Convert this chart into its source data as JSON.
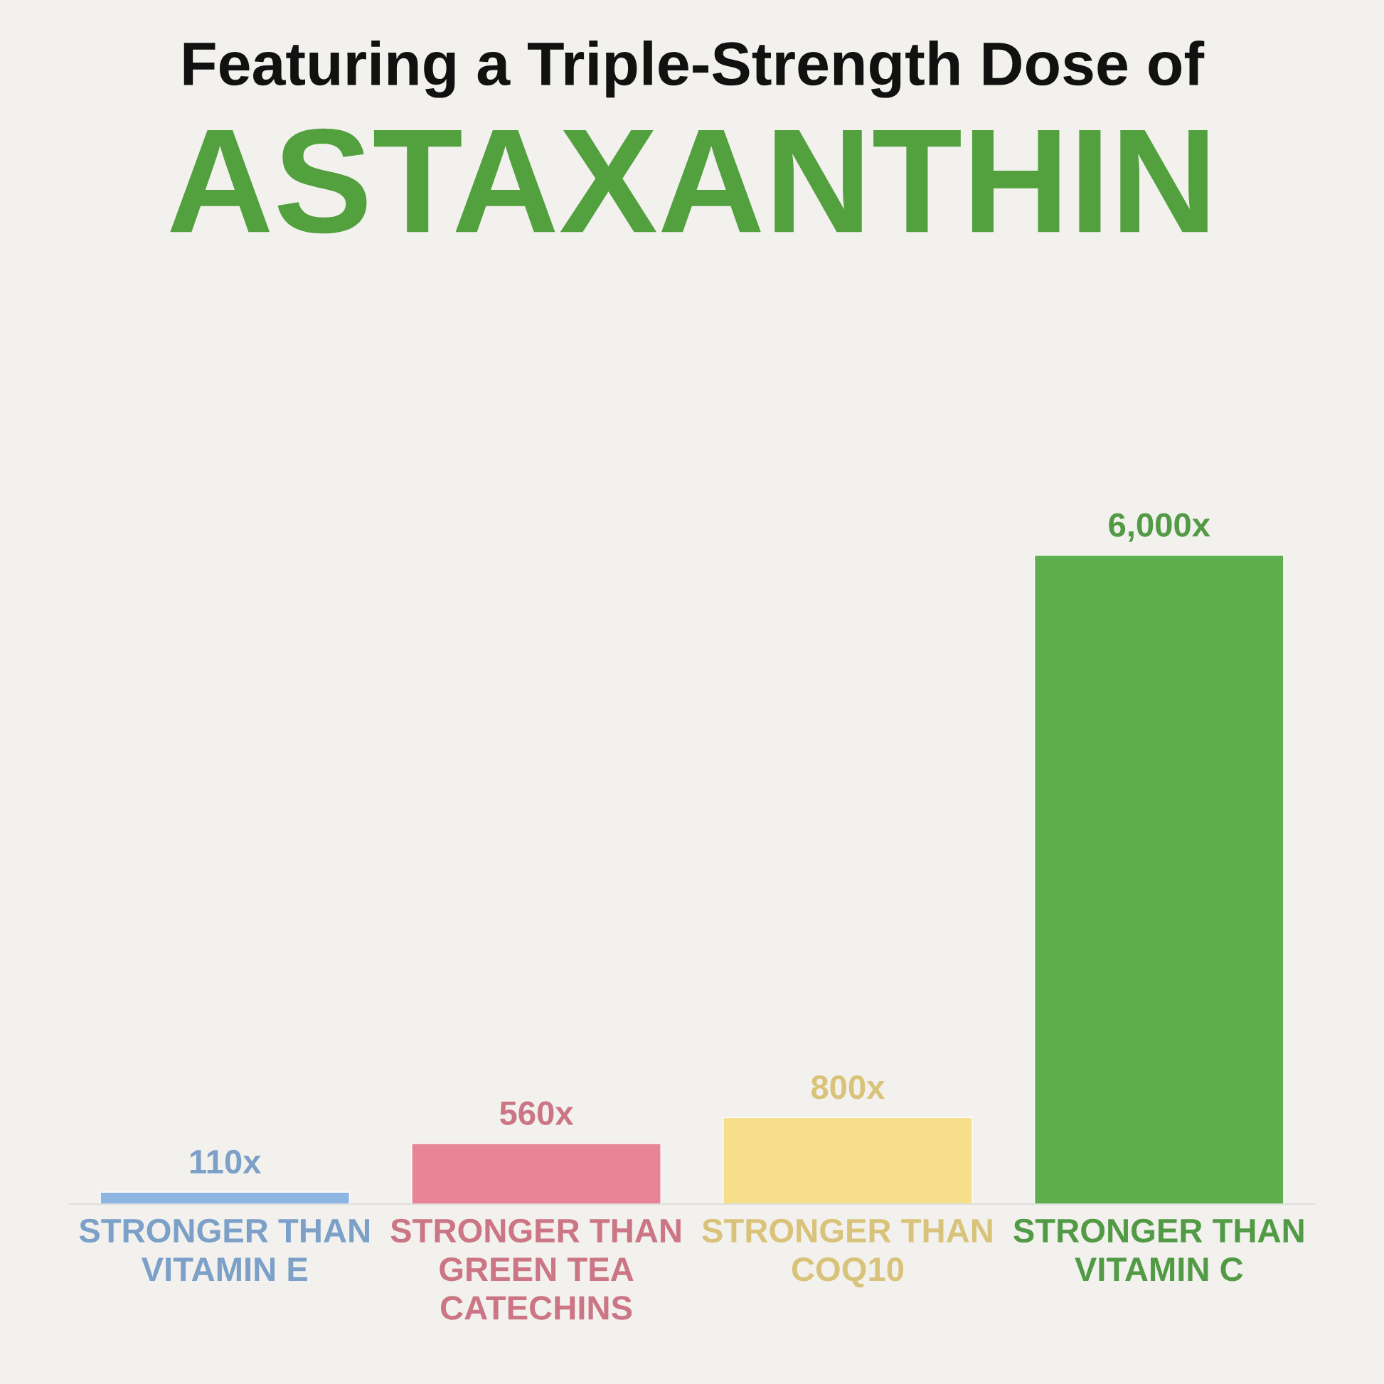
{
  "chart_data": {
    "type": "bar",
    "title": "Featuring a Triple-Strength Dose of",
    "subtitle": "ASTAXANTHIN",
    "categories": [
      "STRONGER THAN\nVITAMIN E",
      "STRONGER THAN\nGREEN TEA\nCATECHINS",
      "STRONGER THAN\nCOQ10",
      "STRONGER THAN\nVITAMIN C"
    ],
    "values": [
      110,
      560,
      800,
      6000
    ],
    "value_labels": [
      "110x",
      "560x",
      "800x",
      "6,000x"
    ],
    "colors": [
      "#8db6e3",
      "#e78597",
      "#f7de8b",
      "#5daf4e"
    ]
  }
}
